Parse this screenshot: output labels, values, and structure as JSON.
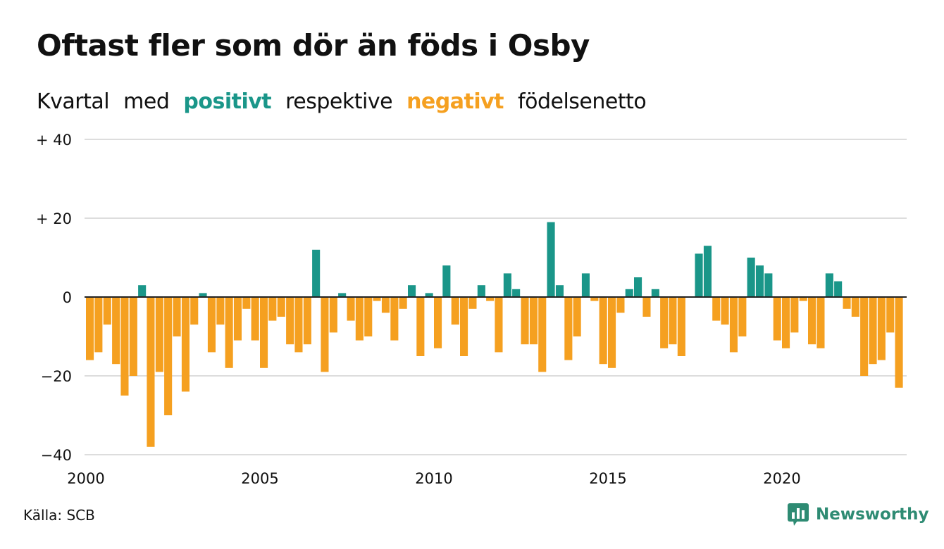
{
  "title": "Oftast fler som dör än föds i Osby",
  "subtitle": {
    "part1": "Kvartal",
    "part2": "med",
    "positive_word": "positivt",
    "part3": "respektive",
    "negative_word": "negativt",
    "part4": "födelsenetto"
  },
  "colors": {
    "positive": "#1a9689",
    "negative": "#f5a020",
    "grid": "#dddddd",
    "zero_line": "#222222"
  },
  "source": "Källa: SCB",
  "logo": {
    "text": "Newsworthy",
    "icon": "newsworthy-chart-bubble-icon"
  },
  "chart_data": {
    "type": "bar",
    "x_unit": "quarter",
    "x_start": "2000 Q1",
    "xlim": [
      2000,
      2023.75
    ],
    "x_ticks": [
      2000,
      2005,
      2010,
      2015,
      2020
    ],
    "x_tick_labels": [
      "2000",
      "2005",
      "2010",
      "2015",
      "2020"
    ],
    "y_ticks": [
      40,
      20,
      0,
      -20,
      -40
    ],
    "y_tick_labels": [
      "+ 40",
      "+ 20",
      "0",
      "−20",
      "−40"
    ],
    "ylim": [
      -40,
      40
    ],
    "grid": true,
    "legend": "in subtitle",
    "values": [
      -16,
      -14,
      -7,
      -17,
      -25,
      -20,
      3,
      -38,
      -19,
      -30,
      -10,
      -24,
      -7,
      1,
      -14,
      -7,
      -18,
      -11,
      -3,
      -11,
      -18,
      -6,
      -5,
      -12,
      -14,
      -12,
      12,
      -19,
      -9,
      1,
      -6,
      -11,
      -10,
      -1,
      -4,
      -11,
      -3,
      3,
      -15,
      1,
      -13,
      8,
      -7,
      -15,
      -3,
      3,
      -1,
      -14,
      6,
      2,
      -12,
      -12,
      -19,
      19,
      3,
      -16,
      -10,
      6,
      -1,
      -17,
      -18,
      -4,
      2,
      5,
      -5,
      2,
      -13,
      -12,
      -15,
      0,
      11,
      13,
      -6,
      -7,
      -14,
      -10,
      10,
      8,
      6,
      -11,
      -13,
      -9,
      -1,
      -12,
      -13,
      6,
      4,
      -3,
      -5,
      -20,
      -17,
      -16,
      -9,
      -23
    ]
  }
}
